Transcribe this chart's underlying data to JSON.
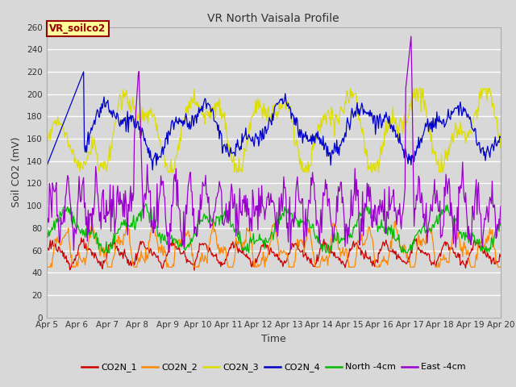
{
  "title": "VR North Vaisala Profile",
  "xlabel": "Time",
  "ylabel": "Soil CO2 (mV)",
  "ylim": [
    0,
    260
  ],
  "yticks": [
    0,
    20,
    40,
    60,
    80,
    100,
    120,
    140,
    160,
    180,
    200,
    220,
    240,
    260
  ],
  "bg_color": "#d8d8d8",
  "plot_bg_color": "#d8d8d8",
  "series_colors": {
    "CO2N_1": "#cc0000",
    "CO2N_2": "#ff8800",
    "CO2N_3": "#dddd00",
    "CO2N_4": "#0000cc",
    "North -4cm": "#00bb00",
    "East -4cm": "#9900cc"
  },
  "annotation_text": "VR_soilco2",
  "annotation_box_color": "#ffff99",
  "annotation_border_color": "#990000",
  "n_points": 600,
  "x_start": 5,
  "x_end": 20,
  "xtick_positions": [
    5,
    6,
    7,
    8,
    9,
    10,
    11,
    12,
    13,
    14,
    15,
    16,
    17,
    18,
    19,
    20
  ],
  "xtick_labels": [
    "Apr 5",
    "Apr 6",
    "Apr 7",
    "Apr 8",
    "Apr 9",
    "Apr 10",
    "Apr 11",
    "Apr 12",
    "Apr 13",
    "Apr 14",
    "Apr 15",
    "Apr 16",
    "Apr 17",
    "Apr 18",
    "Apr 19",
    "Apr 20"
  ],
  "figsize": [
    6.4,
    4.8
  ],
  "dpi": 100,
  "title_fontsize": 10,
  "axis_fontsize": 9,
  "tick_fontsize": 7.5,
  "legend_fontsize": 8
}
